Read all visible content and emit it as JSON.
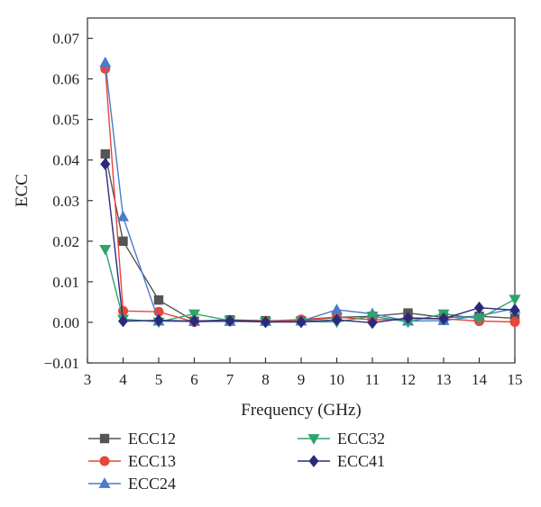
{
  "chart_data": {
    "type": "line",
    "title": "",
    "xlabel": "Frequency (GHz)",
    "ylabel": "ECC",
    "xlim": [
      3,
      15
    ],
    "ylim": [
      -0.01,
      0.075
    ],
    "xticks": [
      3,
      4,
      5,
      6,
      7,
      8,
      9,
      10,
      11,
      12,
      13,
      14,
      15
    ],
    "yticks": [
      -0.01,
      0.0,
      0.01,
      0.02,
      0.03,
      0.04,
      0.05,
      0.06,
      0.07
    ],
    "ytick_labels": [
      "−0.01",
      "0.00",
      "0.01",
      "0.02",
      "0.03",
      "0.04",
      "0.05",
      "0.06",
      "0.07"
    ],
    "grid": false,
    "legend_position": "bottom",
    "x": [
      3.5,
      4,
      5,
      6,
      7,
      8,
      9,
      10,
      11,
      12,
      13,
      14,
      15
    ],
    "series": [
      {
        "name": "ECC12",
        "marker": "square",
        "color": "#555555",
        "values": [
          0.0415,
          0.02,
          0.0055,
          0.0003,
          0.0006,
          0.0004,
          0.0004,
          0.0012,
          0.0015,
          0.0023,
          0.0012,
          0.0015,
          0.001
        ]
      },
      {
        "name": "ECC13",
        "marker": "circle",
        "color": "#e8453c",
        "values": [
          0.0625,
          0.0028,
          0.0026,
          0.0001,
          0.0004,
          0.0003,
          0.0007,
          0.0013,
          0.0006,
          0.0009,
          0.0009,
          0.0003,
          0.0001
        ]
      },
      {
        "name": "ECC24",
        "marker": "triangle-up",
        "color": "#4a7cc7",
        "values": [
          0.064,
          0.026,
          0.0003,
          0.0002,
          0.0002,
          0.0002,
          0.0003,
          0.0031,
          0.0021,
          0.0003,
          0.0004,
          0.0016,
          0.0034
        ]
      },
      {
        "name": "ECC32",
        "marker": "triangle-down",
        "color": "#2fa36b",
        "values": [
          0.018,
          0.0008,
          0.0001,
          0.0021,
          0.0004,
          0.0001,
          0.0002,
          0.0001,
          0.0015,
          0.0001,
          0.0021,
          0.0009,
          0.0057
        ]
      },
      {
        "name": "ECC41",
        "marker": "diamond",
        "color": "#2b2a7a",
        "values": [
          0.039,
          0.0003,
          0.0005,
          0.0003,
          0.0004,
          0.0001,
          0.0001,
          0.0006,
          -0.0001,
          0.0011,
          0.0009,
          0.0036,
          0.003
        ]
      }
    ]
  }
}
